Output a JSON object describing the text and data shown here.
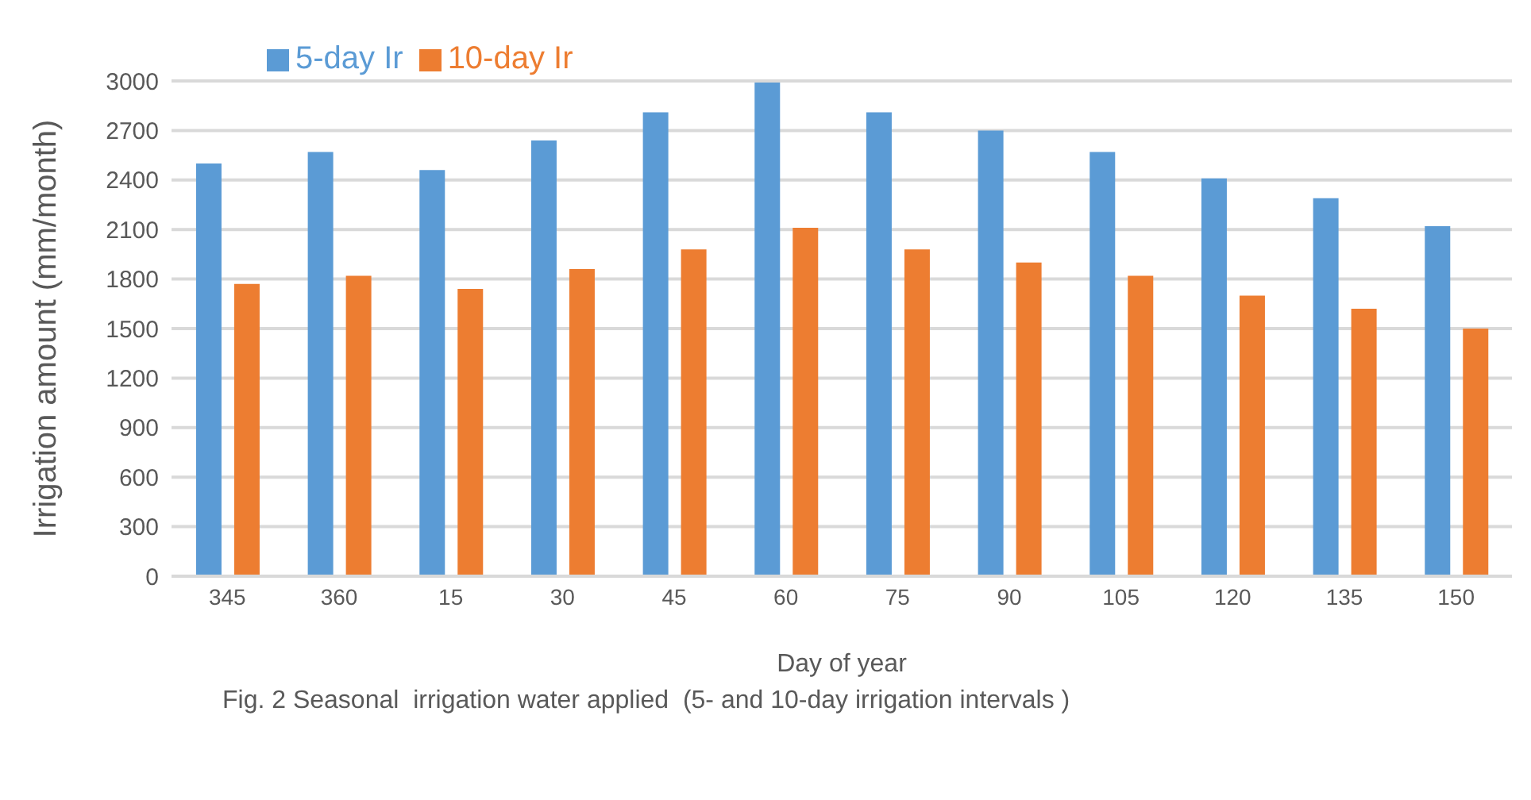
{
  "chart_data": {
    "type": "bar",
    "xlabel": "Day of year",
    "ylabel": "Irrigation amount (mm/month)",
    "categories": [
      "345",
      "360",
      "15",
      "30",
      "45",
      "60",
      "75",
      "90",
      "105",
      "120",
      "135",
      "150"
    ],
    "series": [
      {
        "name": "5-day Ir",
        "color": "#5b9bd5",
        "values": [
          2500,
          2570,
          2460,
          2640,
          2810,
          2990,
          2810,
          2700,
          2570,
          2410,
          2290,
          2120
        ]
      },
      {
        "name": "10-day Ir",
        "color": "#ed7d31",
        "values": [
          1770,
          1820,
          1740,
          1860,
          1980,
          2110,
          1980,
          1900,
          1820,
          1700,
          1620,
          1500
        ]
      }
    ],
    "ylim": [
      0,
      3000
    ],
    "yticks": [
      0,
      300,
      600,
      900,
      1200,
      1500,
      1800,
      2100,
      2400,
      2700,
      3000
    ],
    "grid": "y",
    "legend": "top left",
    "annotations": [
      "Fig. 2 Seasonal  irrigation water applied  (5- and 10-day irrigation intervals )"
    ]
  }
}
